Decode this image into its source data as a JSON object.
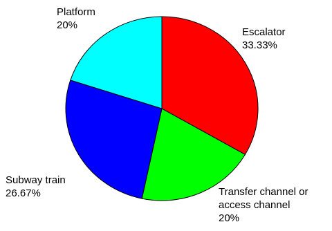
{
  "chart_data": {
    "type": "pie",
    "title": "",
    "colors": {
      "Escalator": "#ff0000",
      "Transfer channel or access channel": "#00ff00",
      "Subway train": "#0000ff",
      "Platform": "#00ffff"
    },
    "slices": [
      {
        "label_lines": [
          "Escalator"
        ],
        "percent_text": "33.33%",
        "value": 33.33
      },
      {
        "label_lines": [
          "Transfer channel or",
          "access channel"
        ],
        "percent_text": "20%",
        "value": 20
      },
      {
        "label_lines": [
          "Subway train"
        ],
        "percent_text": "26.67%",
        "value": 26.67
      },
      {
        "label_lines": [
          "Platform"
        ],
        "percent_text": "20%",
        "value": 20
      }
    ]
  }
}
